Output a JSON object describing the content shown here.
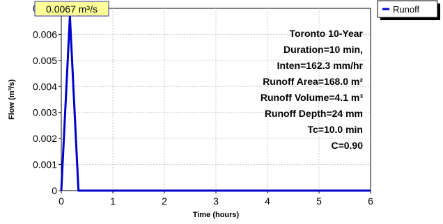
{
  "chart_data": {
    "type": "line",
    "title": "",
    "xlabel": "Time  (hours)",
    "ylabel": "Flow  (m³/s)",
    "xlim": [
      0,
      6
    ],
    "ylim": [
      0,
      0.007
    ],
    "x_ticks": [
      0,
      1,
      2,
      3,
      4,
      5,
      6
    ],
    "x_tick_labels": [
      "0",
      "1",
      "2",
      "3",
      "4",
      "5",
      "6"
    ],
    "y_ticks": [
      0,
      0.001,
      0.002,
      0.003,
      0.004,
      0.005,
      0.006,
      0.007
    ],
    "y_tick_labels": [
      "0",
      "0.001",
      "0.002",
      "0.003",
      "0.004",
      "0.005",
      "0.006",
      "0.007"
    ],
    "grid": true,
    "legend_position": "top-right-outside",
    "series": [
      {
        "name": "Runoff",
        "color": "#0000cc",
        "x": [
          0,
          0.167,
          0.333,
          0.35,
          6
        ],
        "y": [
          0,
          0.0067,
          0,
          0,
          0
        ]
      }
    ],
    "peak_label": "0.0067 m³/s",
    "annotations": [
      "Toronto 10-Year",
      "Duration=10 min,",
      "Inten=162.3 mm/hr",
      "Runoff Area=168.0 m²",
      "Runoff Volume=4.1 m³",
      "Runoff Depth=24 mm",
      "Tc=10.0 min",
      "C=0.90"
    ]
  }
}
